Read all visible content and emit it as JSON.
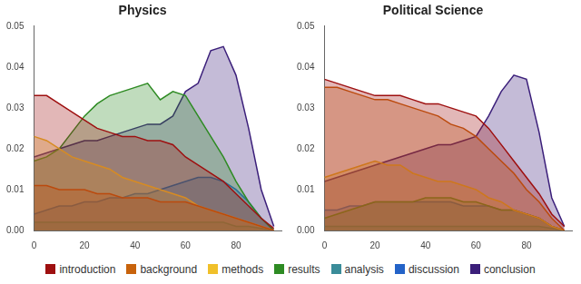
{
  "chart_data": [
    {
      "type": "area",
      "title": "Physics",
      "legend": "bottom",
      "grid": false,
      "x": [
        0,
        5,
        10,
        15,
        20,
        25,
        30,
        35,
        40,
        45,
        50,
        55,
        60,
        65,
        70,
        75,
        80,
        85,
        90,
        95
      ],
      "xlim": [
        0,
        98
      ],
      "xticks": [
        0,
        20,
        40,
        60,
        80
      ],
      "ylim": [
        0,
        0.05
      ],
      "yticks": [
        {
          "value": 0,
          "label": "0.00"
        },
        0.01,
        0.02,
        0.03,
        0.04,
        0.05
      ],
      "series": [
        {
          "name": "introduction",
          "color": "#9e1010",
          "values": [
            0.033,
            0.033,
            0.031,
            0.029,
            0.027,
            0.025,
            0.024,
            0.023,
            0.023,
            0.022,
            0.022,
            0.021,
            0.018,
            0.016,
            0.014,
            0.012,
            0.009,
            0.006,
            0.003,
            0.0005
          ]
        },
        {
          "name": "background",
          "color": "#c8630c",
          "values": [
            0.011,
            0.011,
            0.01,
            0.01,
            0.01,
            0.009,
            0.009,
            0.008,
            0.008,
            0.008,
            0.007,
            0.007,
            0.007,
            0.006,
            0.005,
            0.004,
            0.003,
            0.002,
            0.001,
            0
          ]
        },
        {
          "name": "methods",
          "color": "#f0c02a",
          "values": [
            0.023,
            0.022,
            0.02,
            0.018,
            0.017,
            0.016,
            0.015,
            0.013,
            0.012,
            0.011,
            0.01,
            0.009,
            0.008,
            0.006,
            0.005,
            0.004,
            0.003,
            0.002,
            0.001,
            0
          ]
        },
        {
          "name": "results",
          "color": "#2e8b23",
          "values": [
            0.017,
            0.018,
            0.02,
            0.024,
            0.028,
            0.031,
            0.033,
            0.034,
            0.035,
            0.036,
            0.032,
            0.034,
            0.033,
            0.028,
            0.023,
            0.018,
            0.012,
            0.007,
            0.003,
            0
          ]
        },
        {
          "name": "analysis",
          "color": "#3a8c99",
          "values": [
            0.002,
            0.002,
            0.002,
            0.002,
            0.002,
            0.002,
            0.002,
            0.002,
            0.002,
            0.002,
            0.002,
            0.002,
            0.002,
            0.002,
            0.002,
            0.002,
            0.001,
            0.001,
            0.0005,
            0
          ]
        },
        {
          "name": "discussion",
          "color": "#2463c8",
          "values": [
            0.004,
            0.005,
            0.006,
            0.006,
            0.007,
            0.007,
            0.008,
            0.008,
            0.009,
            0.009,
            0.01,
            0.011,
            0.012,
            0.013,
            0.013,
            0.012,
            0.01,
            0.007,
            0.003,
            0
          ]
        },
        {
          "name": "conclusion",
          "color": "#3b1f7a",
          "values": [
            0.018,
            0.019,
            0.02,
            0.021,
            0.022,
            0.022,
            0.023,
            0.024,
            0.025,
            0.026,
            0.026,
            0.028,
            0.034,
            0.036,
            0.044,
            0.045,
            0.038,
            0.025,
            0.01,
            0.001
          ]
        }
      ]
    },
    {
      "type": "area",
      "title": "Political Science",
      "legend": "bottom",
      "grid": false,
      "x": [
        0,
        5,
        10,
        15,
        20,
        25,
        30,
        35,
        40,
        45,
        50,
        55,
        60,
        65,
        70,
        75,
        80,
        85,
        90,
        95
      ],
      "xlim": [
        0,
        98
      ],
      "xticks": [
        0,
        20,
        40,
        60,
        80
      ],
      "ylim": [
        0,
        0.05
      ],
      "yticks": [
        {
          "value": 0,
          "label": "0.00"
        },
        0.01,
        0.02,
        0.03,
        0.04,
        0.05
      ],
      "series": [
        {
          "name": "introduction",
          "color": "#9e1010",
          "values": [
            0.037,
            0.036,
            0.035,
            0.034,
            0.033,
            0.033,
            0.033,
            0.032,
            0.031,
            0.031,
            0.03,
            0.029,
            0.028,
            0.025,
            0.021,
            0.017,
            0.013,
            0.009,
            0.004,
            0.001
          ]
        },
        {
          "name": "background",
          "color": "#c8630c",
          "values": [
            0.035,
            0.035,
            0.034,
            0.033,
            0.032,
            0.032,
            0.031,
            0.03,
            0.029,
            0.028,
            0.026,
            0.025,
            0.023,
            0.02,
            0.017,
            0.014,
            0.01,
            0.007,
            0.003,
            0
          ]
        },
        {
          "name": "methods",
          "color": "#f0c02a",
          "values": [
            0.013,
            0.014,
            0.015,
            0.016,
            0.017,
            0.016,
            0.016,
            0.014,
            0.013,
            0.012,
            0.012,
            0.011,
            0.01,
            0.008,
            0.007,
            0.005,
            0.004,
            0.003,
            0.001,
            0
          ]
        },
        {
          "name": "results",
          "color": "#2e8b23",
          "values": [
            0.003,
            0.004,
            0.005,
            0.006,
            0.007,
            0.007,
            0.007,
            0.007,
            0.008,
            0.008,
            0.008,
            0.007,
            0.007,
            0.006,
            0.005,
            0.005,
            0.004,
            0.003,
            0.001,
            0
          ]
        },
        {
          "name": "analysis",
          "color": "#3a8c99",
          "values": [
            0.001,
            0.001,
            0.001,
            0.001,
            0.001,
            0.001,
            0.001,
            0.001,
            0.001,
            0.001,
            0.001,
            0.001,
            0.001,
            0.001,
            0.001,
            0.001,
            0.001,
            0.001,
            0.0005,
            0
          ]
        },
        {
          "name": "discussion",
          "color": "#2463c8",
          "values": [
            0.005,
            0.005,
            0.006,
            0.006,
            0.007,
            0.007,
            0.007,
            0.007,
            0.007,
            0.007,
            0.007,
            0.006,
            0.006,
            0.006,
            0.005,
            0.005,
            0.004,
            0.003,
            0.001,
            0
          ]
        },
        {
          "name": "conclusion",
          "color": "#3b1f7a",
          "values": [
            0.012,
            0.013,
            0.014,
            0.015,
            0.016,
            0.017,
            0.018,
            0.019,
            0.02,
            0.021,
            0.021,
            0.022,
            0.023,
            0.028,
            0.034,
            0.038,
            0.037,
            0.024,
            0.008,
            0.001
          ]
        }
      ]
    }
  ]
}
